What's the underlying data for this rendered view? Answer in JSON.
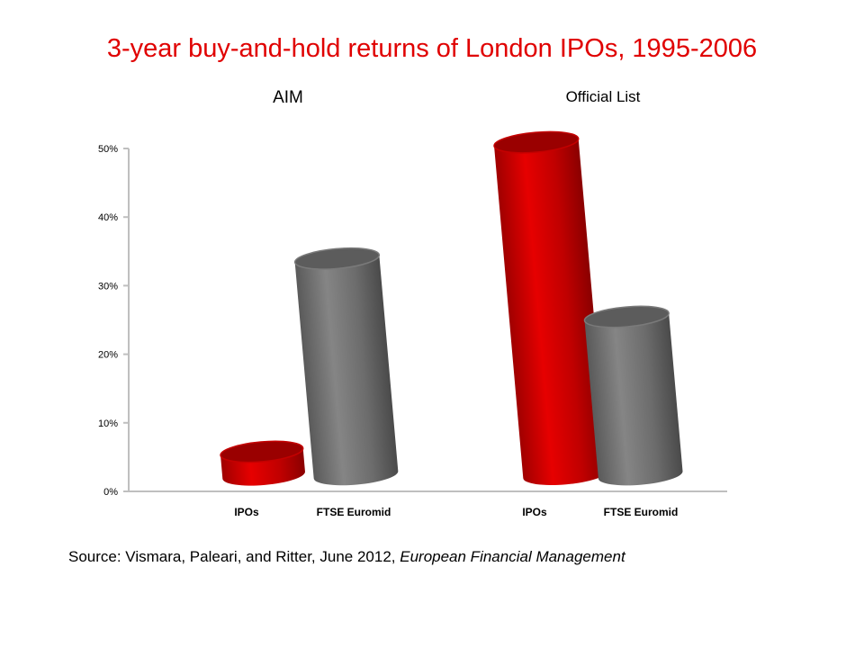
{
  "slide": {
    "title": "3-year buy-and-hold returns of London IPOs, 1995-2006",
    "title_color": "#e00000"
  },
  "source": {
    "prefix": "Source:  Vismara, Paleari, and Ritter, June 2012, ",
    "journal": "European Financial Management"
  },
  "colors": {
    "ipo": "#cc0000",
    "ftse": "#6e6e6e",
    "axis": "#bfbfbf"
  },
  "chart_data": {
    "type": "bar",
    "groups": [
      "AIM",
      "Official List"
    ],
    "categories": [
      "IPOs",
      "FTSE Euromid",
      "IPOs",
      "FTSE Euromid"
    ],
    "values": [
      5,
      34,
      51,
      25.5
    ],
    "y_unit": "%",
    "ylim": [
      0,
      50
    ],
    "yticks": [
      "0%",
      "10%",
      "20%",
      "30%",
      "40%",
      "50%"
    ],
    "grid": false,
    "title": "",
    "xlabel": "",
    "ylabel": ""
  }
}
